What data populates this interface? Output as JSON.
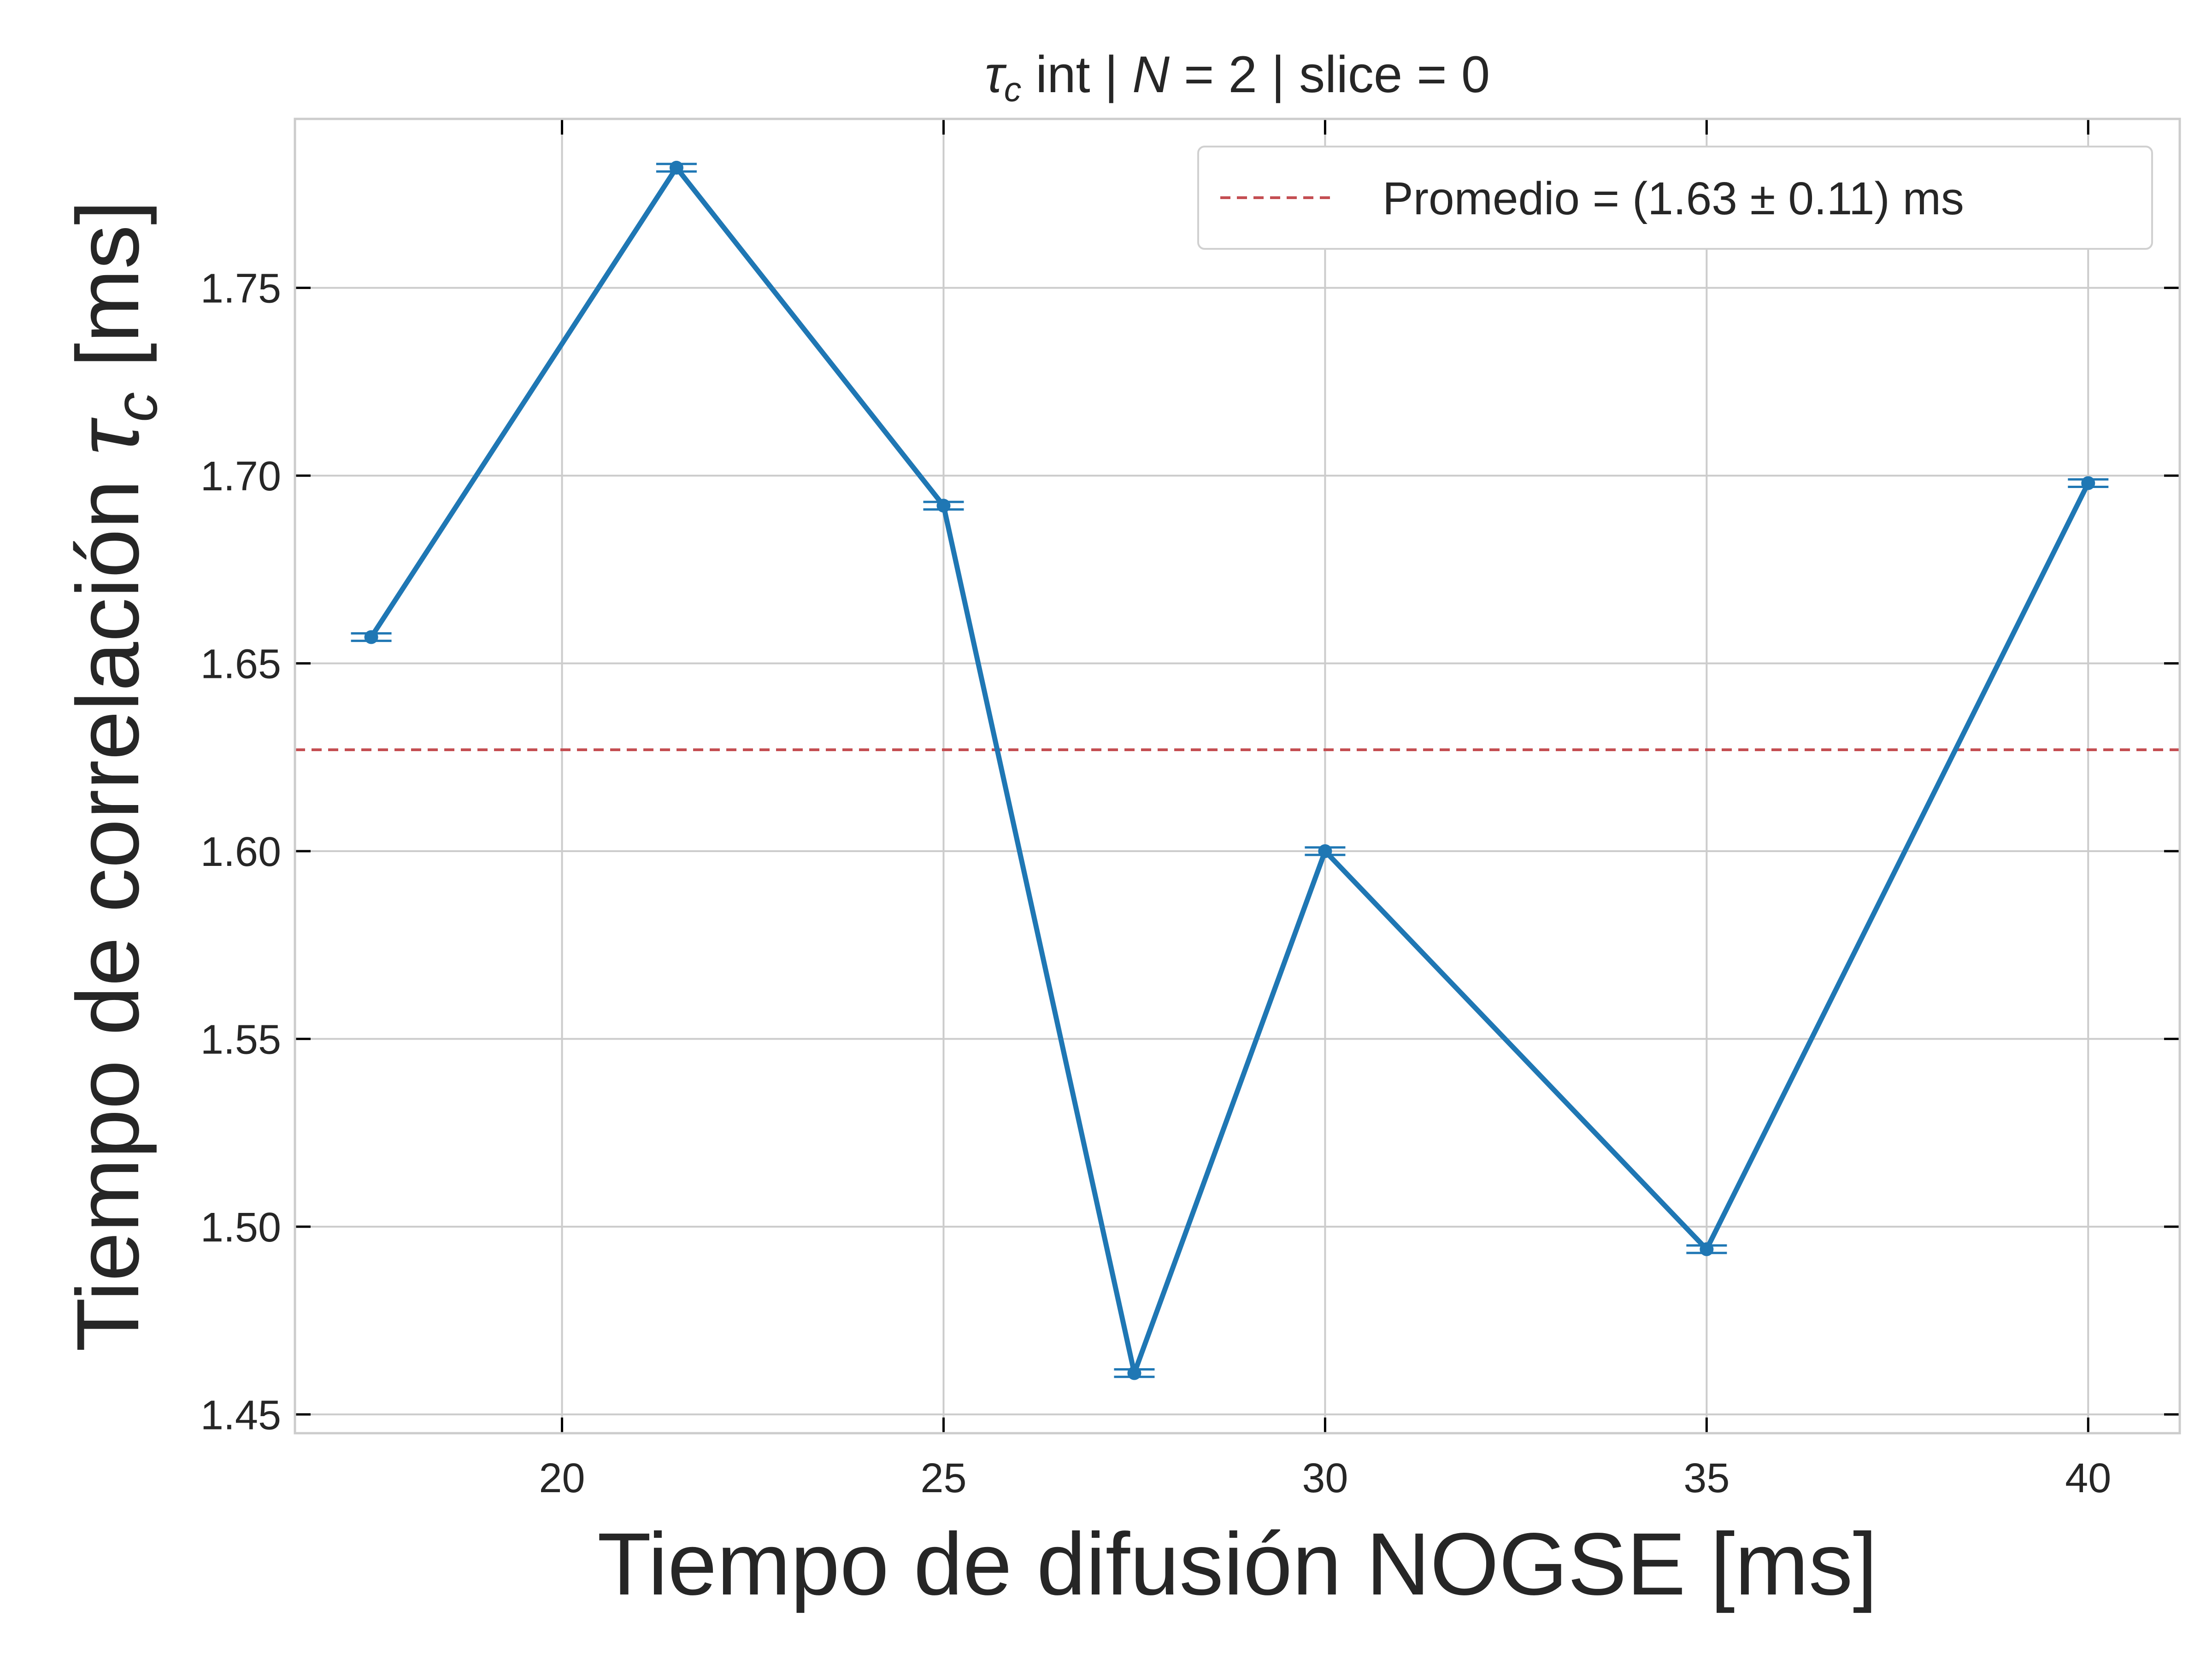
{
  "chart_data": {
    "type": "line",
    "title": {
      "tau": "τ",
      "sub": "c",
      "part1": " int | ",
      "n": "N",
      "part2": " = 2 | slice = 0"
    },
    "xlabel": "Tiempo de difusión NOGSE [ms]",
    "ylabel": {
      "main": "Tiempo de correlación ",
      "tau": "τ",
      "sub": "c",
      "unit": " [ms]"
    },
    "xlim": [
      16.5,
      41.2
    ],
    "ylim": [
      1.445,
      1.795
    ],
    "xticks": [
      20,
      25,
      30,
      35,
      40
    ],
    "yticks": [
      1.45,
      1.5,
      1.55,
      1.6,
      1.65,
      1.7,
      1.75
    ],
    "grid": true,
    "legend_position": "top-right",
    "series": [
      {
        "x": [
          17.5,
          21.5,
          25,
          27.5,
          30,
          35,
          40
        ],
        "y": [
          1.657,
          1.782,
          1.692,
          1.461,
          1.6,
          1.494,
          1.698
        ],
        "yerr": [
          0.001,
          0.001,
          0.001,
          0.001,
          0.001,
          0.001,
          0.001
        ],
        "color": "#1f77b4"
      }
    ],
    "reference_line": {
      "y": 1.627,
      "label": "Promedio = (1.63 ± 0.11) ms",
      "color": "#c44e52",
      "style": "dashed"
    }
  }
}
